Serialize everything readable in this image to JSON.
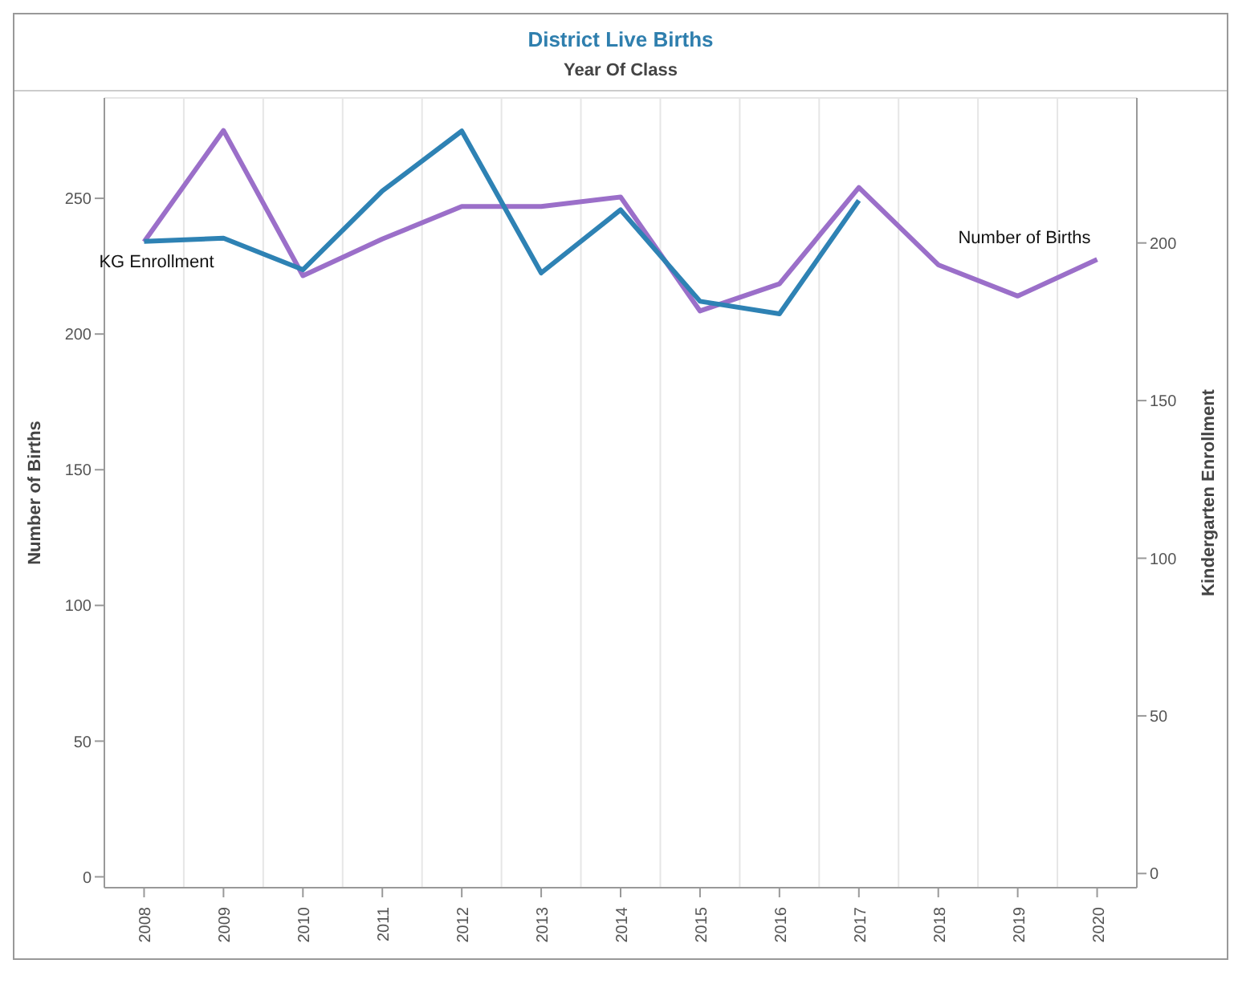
{
  "chart_data": {
    "type": "line",
    "title": "District Live Births",
    "xlabel": "Year Of Class",
    "ylabel": "Number of Births",
    "y2label": "Kindergarten Enrollment",
    "categories": [
      "2008",
      "2009",
      "2010",
      "2011",
      "2012",
      "2013",
      "2014",
      "2015",
      "2016",
      "2017",
      "2018",
      "2019",
      "2020"
    ],
    "series": [
      {
        "name": "Number of Births",
        "color": "#9b6fc9",
        "values": [
          234,
          275,
          221.5,
          235,
          247,
          247,
          250.5,
          208.5,
          218.5,
          254,
          225.5,
          214,
          227.5
        ]
      },
      {
        "name": "KG Enrollment",
        "color": "#2e82b4",
        "axis": "y2",
        "values": [
          200.5,
          201.5,
          191.5,
          216.5,
          235.5,
          190.5,
          210.5,
          181.5,
          177.5,
          213.5,
          null,
          null,
          null
        ]
      }
    ],
    "ylim": [
      -4,
      287
    ],
    "yticks": [
      0,
      50,
      100,
      150,
      200,
      250
    ],
    "y2lim": [
      -4.5,
      246
    ],
    "y2ticks": [
      0,
      50,
      100,
      150,
      200
    ],
    "grid": true,
    "legend": false,
    "marker": "none",
    "line_style": "solid"
  }
}
